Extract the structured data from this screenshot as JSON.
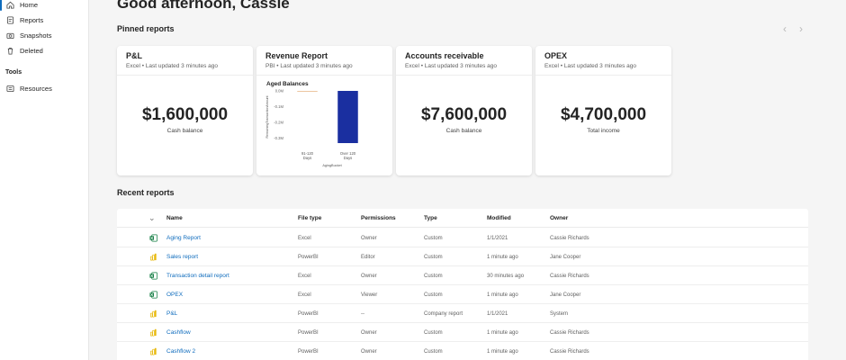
{
  "sidebar": {
    "items": [
      {
        "label": "Home",
        "icon": "home-icon",
        "active": true
      },
      {
        "label": "Reports",
        "icon": "reports-icon",
        "active": false
      },
      {
        "label": "Snapshots",
        "icon": "camera-icon",
        "active": false
      },
      {
        "label": "Deleted",
        "icon": "trash-icon",
        "active": false
      }
    ],
    "tools_title": "Tools",
    "tools": [
      {
        "label": "Resources",
        "icon": "resources-icon"
      }
    ]
  },
  "greeting": "Good afternoon, Cassie",
  "pinned": {
    "title": "Pinned reports",
    "cards": [
      {
        "title": "P&L",
        "subtitle": "Excel • Last updated 3 minutes ago",
        "value": "$1,600,000",
        "caption": "Cash balance"
      },
      {
        "title": "Revenue Report",
        "subtitle": "PBI • Last updated 3 minutes ago",
        "chart": {
          "title": "Aged Balances",
          "ylabel": "RemainingTransactionAmount",
          "xlabel": "AgingBucket",
          "yticks": [
            "0.0M",
            "-0.1M",
            "-0.2M",
            "-0.3M"
          ]
        }
      },
      {
        "title": "Accounts receivable",
        "subtitle": "Excel • Last updated 3 minutes ago",
        "value": "$7,600,000",
        "caption": "Cash balance"
      },
      {
        "title": "OPEX",
        "subtitle": "Excel • Last updated 3 minutes ago",
        "value": "$4,700,000",
        "caption": "Total income"
      }
    ]
  },
  "chart_data": {
    "type": "bar",
    "title": "Aged Balances",
    "xlabel": "AgingBucket",
    "ylabel": "RemainingTransactionAmount",
    "categories": [
      "91-120 Days",
      "Over 120 Days"
    ],
    "values": [
      -0.002,
      -0.33
    ],
    "ylim": [
      -0.33,
      0.0
    ],
    "yticks": [
      "0.0M",
      "-0.1M",
      "-0.2M",
      "-0.3M"
    ],
    "colors": [
      "#e0a060",
      "#1a2fa0"
    ]
  },
  "recent": {
    "title": "Recent reports",
    "columns": [
      "Name",
      "File type",
      "Permissions",
      "Type",
      "Modified",
      "Owner"
    ],
    "rows": [
      {
        "name": "Aging Report",
        "file_type": "Excel",
        "permissions": "Owner",
        "type": "Custom",
        "modified": "1/1/2021",
        "owner": "Cassie Richards",
        "icon": "excel-icon"
      },
      {
        "name": "Sales report",
        "file_type": "PowerBI",
        "permissions": "Editor",
        "type": "Custom",
        "modified": "1 minute ago",
        "owner": "Jane Cooper",
        "icon": "powerbi-icon"
      },
      {
        "name": "Transaction detail report",
        "file_type": "Excel",
        "permissions": "Owner",
        "type": "Custom",
        "modified": "30 minutes ago",
        "owner": "Cassie Richards",
        "icon": "excel-icon"
      },
      {
        "name": "OPEX",
        "file_type": "Excel",
        "permissions": "Viewer",
        "type": "Custom",
        "modified": "1 minute ago",
        "owner": "Jane Cooper",
        "icon": "excel-icon"
      },
      {
        "name": "P&L",
        "file_type": "PowerBI",
        "permissions": "--",
        "type": "Company report",
        "modified": "1/1/2021",
        "owner": "System",
        "icon": "powerbi-icon"
      },
      {
        "name": "Cashflow",
        "file_type": "PowerBI",
        "permissions": "Owner",
        "type": "Custom",
        "modified": "1 minute ago",
        "owner": "Cassie Richards",
        "icon": "powerbi-icon"
      },
      {
        "name": "Cashflow 2",
        "file_type": "PowerBI",
        "permissions": "Owner",
        "type": "Custom",
        "modified": "1 minute ago",
        "owner": "Cassie Richards",
        "icon": "powerbi-icon"
      }
    ]
  },
  "colors": {
    "accent": "#0f6cbd",
    "excel": "#107c41",
    "powerbi": "#e8b90e"
  }
}
